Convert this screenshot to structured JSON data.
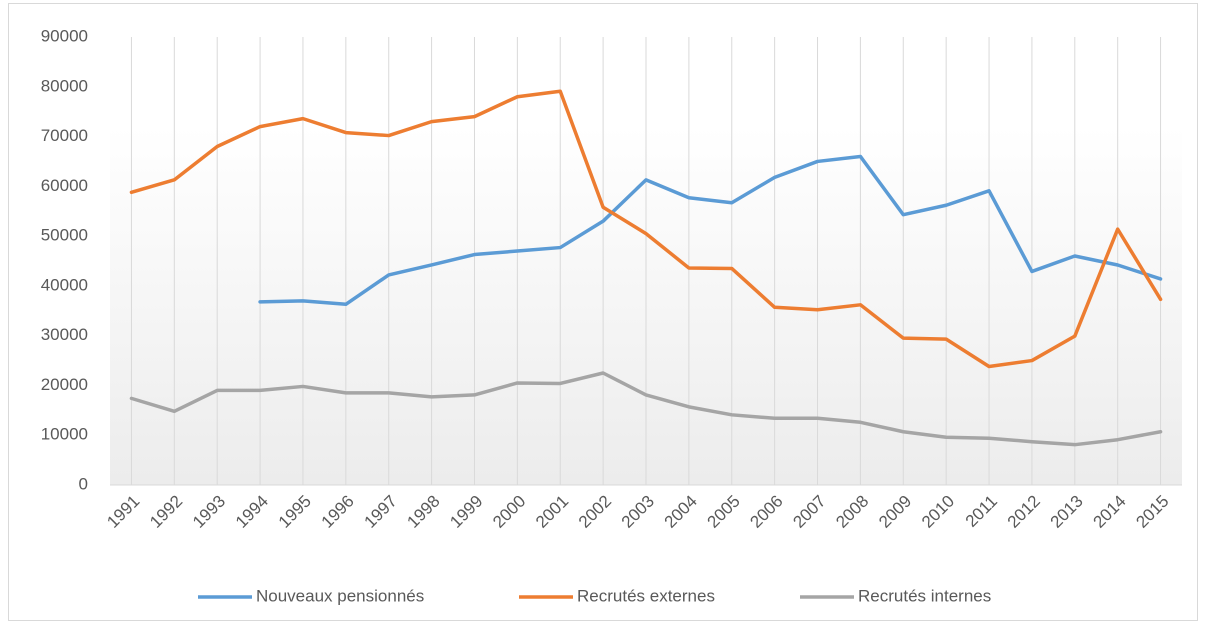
{
  "chart_data": {
    "type": "line",
    "categories": [
      "1991",
      "1992",
      "1993",
      "1994",
      "1995",
      "1996",
      "1997",
      "1998",
      "1999",
      "2000",
      "2001",
      "2002",
      "2003",
      "2004",
      "2005",
      "2006",
      "2007",
      "2008",
      "2009",
      "2010",
      "2011",
      "2012",
      "2013",
      "2014",
      "2015"
    ],
    "series": [
      {
        "name": "Nouveaux pensionnés",
        "color": "#5b9bd5",
        "values": [
          null,
          null,
          null,
          36800,
          37000,
          36300,
          42200,
          44200,
          46300,
          47000,
          47700,
          53000,
          61300,
          57700,
          56700,
          61800,
          65000,
          66000,
          54300,
          56200,
          59100,
          42900,
          46000,
          44200,
          41400
        ]
      },
      {
        "name": "Recrutés externes",
        "color": "#ed7d31",
        "values": [
          58800,
          61300,
          68000,
          72000,
          73600,
          70800,
          70200,
          73000,
          74000,
          78000,
          79100,
          55800,
          50500,
          43600,
          43500,
          35700,
          35200,
          36200,
          29500,
          29300,
          23800,
          25000,
          29900,
          51400,
          37300
        ]
      },
      {
        "name": "Recrutés internes",
        "color": "#a5a5a5",
        "values": [
          17400,
          14800,
          19000,
          19000,
          19800,
          18500,
          18500,
          17700,
          18100,
          20500,
          20400,
          22500,
          18100,
          15700,
          14100,
          13400,
          13400,
          12600,
          10700,
          9600,
          9400,
          8700,
          8100,
          9100,
          10700
        ]
      }
    ],
    "ylim": [
      0,
      90000
    ],
    "yticks": [
      0,
      10000,
      20000,
      30000,
      40000,
      50000,
      60000,
      70000,
      80000,
      90000
    ],
    "grid": false,
    "legend": "bottom"
  }
}
